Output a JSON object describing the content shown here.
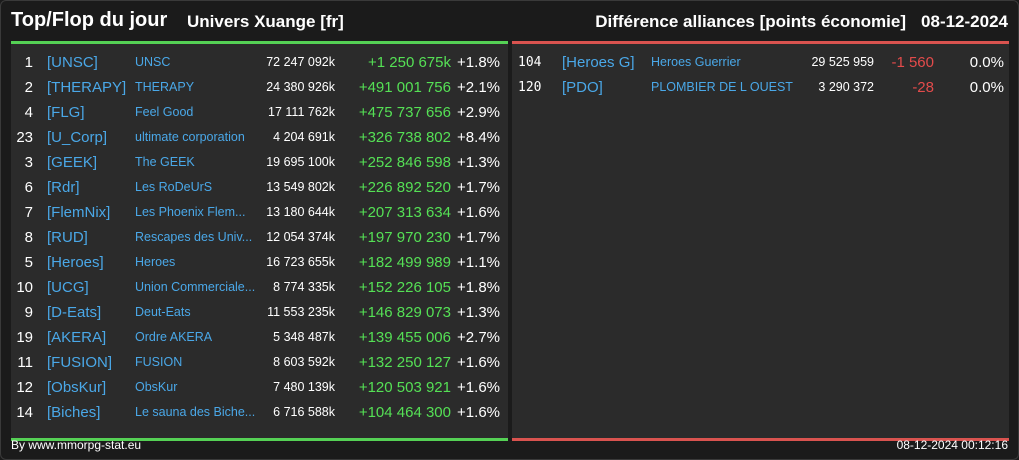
{
  "header": {
    "title": "Top/Flop du jour",
    "universe": "Univers Xuange [fr]",
    "difference": "Différence alliances [points économie]",
    "date": "08-12-2024"
  },
  "colors": {
    "accent_link": "#4aa8e8",
    "gain": "#55e055",
    "loss": "#e34b4b",
    "top_bar": "#55d155",
    "flop_bar": "#d9534f"
  },
  "top": [
    {
      "rank": "1",
      "tag": "[UNSC]",
      "name": "UNSC",
      "points": "72 247 092k",
      "delta": "+1 250 675k",
      "pct": "+1.8%"
    },
    {
      "rank": "2",
      "tag": "[THERAPY]",
      "name": "THERAPY",
      "points": "24 380 926k",
      "delta": "+491 001 756",
      "pct": "+2.1%"
    },
    {
      "rank": "4",
      "tag": "[FLG]",
      "name": "Feel Good",
      "points": "17 111 762k",
      "delta": "+475 737 656",
      "pct": "+2.9%"
    },
    {
      "rank": "23",
      "tag": "[U_Corp]",
      "name": "ultimate corporation",
      "points": "4 204 691k",
      "delta": "+326 738 802",
      "pct": "+8.4%"
    },
    {
      "rank": "3",
      "tag": "[GEEK]",
      "name": "The GEEK",
      "points": "19 695 100k",
      "delta": "+252 846 598",
      "pct": "+1.3%"
    },
    {
      "rank": "6",
      "tag": "[Rdr]",
      "name": "Les RoDeUrS",
      "points": "13 549 802k",
      "delta": "+226 892 520",
      "pct": "+1.7%"
    },
    {
      "rank": "7",
      "tag": "[FlemNix]",
      "name": "Les Phoenix Flem...",
      "points": "13 180 644k",
      "delta": "+207 313 634",
      "pct": "+1.6%"
    },
    {
      "rank": "8",
      "tag": "[RUD]",
      "name": "Rescapes des Univ...",
      "points": "12 054 374k",
      "delta": "+197 970 230",
      "pct": "+1.7%"
    },
    {
      "rank": "5",
      "tag": "[Heroes]",
      "name": "Heroes",
      "points": "16 723 655k",
      "delta": "+182 499 989",
      "pct": "+1.1%"
    },
    {
      "rank": "10",
      "tag": "[UCG]",
      "name": "Union Commerciale...",
      "points": "8 774 335k",
      "delta": "+152 226 105",
      "pct": "+1.8%"
    },
    {
      "rank": "9",
      "tag": "[D-Eats]",
      "name": "Deut-Eats",
      "points": "11 553 235k",
      "delta": "+146 829 073",
      "pct": "+1.3%"
    },
    {
      "rank": "19",
      "tag": "[AKERA]",
      "name": "Ordre AKERA",
      "points": "5 348 487k",
      "delta": "+139 455 006",
      "pct": "+2.7%"
    },
    {
      "rank": "11",
      "tag": "[FUSION]",
      "name": "FUSION",
      "points": "8 603 592k",
      "delta": "+132 250 127",
      "pct": "+1.6%"
    },
    {
      "rank": "12",
      "tag": "[ObsKur]",
      "name": "ObsKur",
      "points": "7 480 139k",
      "delta": "+120 503 921",
      "pct": "+1.6%"
    },
    {
      "rank": "14",
      "tag": "[Biches]",
      "name": "Le sauna des Biche...",
      "points": "6 716 588k",
      "delta": "+104 464 300",
      "pct": "+1.6%"
    }
  ],
  "flop": [
    {
      "rank": "104",
      "tag": "[Heroes G]",
      "name": "Heroes Guerrier",
      "points": "29 525 959",
      "delta": "-1 560",
      "pct": "0.0%"
    },
    {
      "rank": "120",
      "tag": "[PDO]",
      "name": "PLOMBIER DE L OUEST",
      "points": "3 290 372",
      "delta": "-28",
      "pct": "0.0%"
    }
  ],
  "footer": {
    "source": "By www.mmorpg-stat.eu",
    "timestamp": "08-12-2024 00:12:16"
  }
}
